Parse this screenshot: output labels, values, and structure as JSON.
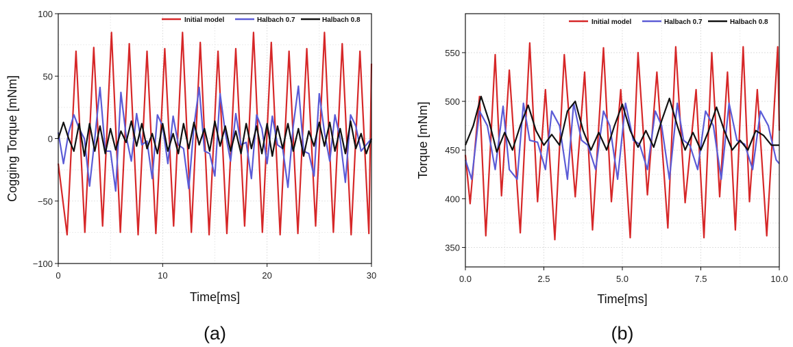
{
  "chart_data": [
    {
      "type": "line",
      "caption": "(a)",
      "xlabel": "Time[ms]",
      "ylabel": "Cogging Torque [mNm]",
      "xlim": [
        0,
        30
      ],
      "ylim": [
        -100,
        100
      ],
      "xticks": [
        0,
        10,
        20,
        30
      ],
      "yticks": [
        -100,
        -50,
        0,
        50,
        100
      ],
      "xtick_labels": [
        "0",
        "10",
        "20",
        "30"
      ],
      "ytick_labels": [
        "−100",
        "−50",
        "0",
        "50",
        "100"
      ],
      "grid": true,
      "legend_position": "top-right",
      "series": [
        {
          "name": "Initial model",
          "color": "#d62728",
          "x": [
            0.0,
            0.85,
            1.7,
            2.55,
            3.4,
            4.25,
            5.1,
            5.95,
            6.8,
            7.65,
            8.5,
            9.35,
            10.2,
            11.05,
            11.9,
            12.75,
            13.6,
            14.45,
            15.3,
            16.15,
            17.0,
            17.85,
            18.7,
            19.55,
            20.4,
            21.25,
            22.1,
            22.95,
            23.8,
            24.65,
            25.5,
            26.35,
            27.2,
            28.05,
            28.9,
            29.75,
            30.0
          ],
          "y": [
            -20,
            -77,
            70,
            -75,
            73,
            -70,
            85,
            -75,
            76,
            -77,
            70,
            -76,
            72,
            -70,
            85,
            -75,
            77,
            -77,
            70,
            -76,
            72,
            -70,
            85,
            -75,
            77,
            -77,
            70,
            -76,
            72,
            -70,
            85,
            -75,
            76,
            -77,
            70,
            -76,
            60
          ]
        },
        {
          "name": "Halbach 0.7",
          "color": "#5b5bd6",
          "x": [
            0.0,
            0.5,
            1.0,
            1.5,
            2.0,
            2.5,
            3.0,
            3.5,
            4.0,
            4.5,
            5.0,
            5.5,
            6.0,
            6.5,
            7.0,
            7.5,
            8.0,
            8.5,
            9.0,
            9.5,
            10.0,
            10.5,
            11.0,
            11.5,
            12.0,
            12.5,
            13.0,
            13.5,
            14.0,
            14.5,
            15.0,
            15.5,
            16.0,
            16.5,
            17.0,
            17.5,
            18.0,
            18.5,
            19.0,
            19.5,
            20.0,
            20.5,
            21.0,
            21.5,
            22.0,
            22.5,
            23.0,
            23.5,
            24.0,
            24.5,
            25.0,
            25.5,
            26.0,
            26.5,
            27.0,
            27.5,
            28.0,
            28.5,
            29.0,
            29.5,
            30.0
          ],
          "y": [
            5,
            -20,
            5,
            19,
            8,
            0,
            -38,
            0,
            41,
            -10,
            -10,
            -42,
            37,
            2,
            -18,
            20,
            -5,
            -2,
            -32,
            19,
            10,
            -20,
            18,
            -5,
            -8,
            -40,
            10,
            41,
            -10,
            -12,
            -30,
            36,
            5,
            -18,
            20,
            -5,
            -3,
            -32,
            19,
            8,
            -20,
            18,
            -5,
            -8,
            -39,
            10,
            42,
            -10,
            -12,
            -30,
            36,
            5,
            -18,
            19,
            0,
            -35,
            19,
            10,
            -10,
            -5,
            0
          ]
        },
        {
          "name": "Halbach 0.8",
          "color": "#111111",
          "x": [
            0.0,
            0.5,
            1.0,
            1.5,
            2.0,
            2.5,
            3.0,
            3.5,
            4.0,
            4.5,
            5.0,
            5.5,
            6.0,
            6.5,
            7.0,
            7.5,
            8.0,
            8.5,
            9.0,
            9.5,
            10.0,
            10.5,
            11.0,
            11.5,
            12.0,
            12.5,
            13.0,
            13.5,
            14.0,
            14.5,
            15.0,
            15.5,
            16.0,
            16.5,
            17.0,
            17.5,
            18.0,
            18.5,
            19.0,
            19.5,
            20.0,
            20.5,
            21.0,
            21.5,
            22.0,
            22.5,
            23.0,
            23.5,
            24.0,
            24.5,
            25.0,
            25.5,
            26.0,
            26.5,
            27.0,
            27.5,
            28.0,
            28.5,
            29.0,
            29.5,
            30.0
          ],
          "y": [
            0,
            13,
            0,
            -10,
            12,
            -14,
            12,
            -10,
            10,
            -12,
            8,
            -9,
            6,
            -3,
            14,
            -6,
            12,
            -8,
            4,
            -12,
            12,
            -10,
            4,
            -12,
            12,
            -8,
            13,
            -5,
            8,
            -10,
            14,
            -6,
            10,
            -10,
            6,
            -12,
            12,
            -8,
            10,
            -12,
            12,
            -14,
            10,
            -8,
            12,
            -10,
            8,
            -14,
            6,
            -6,
            13,
            -6,
            13,
            -10,
            8,
            -12,
            14,
            -8,
            4,
            -12,
            0
          ]
        }
      ]
    },
    {
      "type": "line",
      "caption": "(b)",
      "xlabel": "Time[ms]",
      "ylabel": "Torque [mNm]",
      "xlim": [
        0,
        10
      ],
      "ylim": [
        330,
        590
      ],
      "xticks": [
        0,
        2.5,
        5,
        7.5,
        10
      ],
      "yticks": [
        350,
        400,
        450,
        500,
        550
      ],
      "xtick_labels": [
        "0.0",
        "2.5",
        "5.0",
        "7.5",
        "10.0"
      ],
      "ytick_labels": [
        "350",
        "400",
        "450",
        "500",
        "550"
      ],
      "grid": true,
      "legend_position": "top-right",
      "series": [
        {
          "name": "Initial model",
          "color": "#d62728",
          "x": [
            0.0,
            0.15,
            0.45,
            0.65,
            0.95,
            1.15,
            1.4,
            1.75,
            2.05,
            2.3,
            2.55,
            2.85,
            3.15,
            3.5,
            3.8,
            4.05,
            4.4,
            4.65,
            4.95,
            5.25,
            5.5,
            5.8,
            6.1,
            6.45,
            6.7,
            7.0,
            7.35,
            7.6,
            7.85,
            8.1,
            8.35,
            8.6,
            8.85,
            9.05,
            9.3,
            9.6,
            9.95,
            10.0
          ],
          "y": [
            445,
            395,
            505,
            362,
            548,
            403,
            532,
            365,
            560,
            397,
            512,
            358,
            548,
            402,
            530,
            368,
            555,
            397,
            512,
            360,
            550,
            404,
            530,
            370,
            556,
            396,
            512,
            360,
            550,
            402,
            530,
            368,
            556,
            397,
            512,
            362,
            556,
            470
          ]
        },
        {
          "name": "Halbach 0.7",
          "color": "#5b5bd6",
          "x": [
            0.0,
            0.2,
            0.45,
            0.7,
            0.95,
            1.2,
            1.4,
            1.65,
            1.85,
            2.05,
            2.3,
            2.55,
            2.75,
            3.0,
            3.25,
            3.45,
            3.7,
            3.9,
            4.15,
            4.4,
            4.6,
            4.85,
            5.1,
            5.35,
            5.55,
            5.8,
            6.05,
            6.25,
            6.5,
            6.75,
            6.95,
            7.15,
            7.4,
            7.65,
            7.9,
            8.15,
            8.4,
            8.65,
            8.9,
            9.15,
            9.4,
            9.65,
            9.9,
            10.0
          ],
          "y": [
            440,
            420,
            490,
            475,
            430,
            495,
            430,
            420,
            498,
            460,
            458,
            430,
            490,
            475,
            420,
            498,
            460,
            455,
            430,
            490,
            475,
            420,
            498,
            460,
            456,
            430,
            490,
            475,
            420,
            498,
            460,
            455,
            430,
            490,
            475,
            420,
            498,
            460,
            456,
            430,
            490,
            475,
            440,
            436
          ]
        },
        {
          "name": "Halbach 0.8",
          "color": "#111111",
          "x": [
            0.0,
            0.25,
            0.5,
            0.75,
            1.0,
            1.25,
            1.5,
            1.75,
            2.0,
            2.25,
            2.5,
            2.75,
            3.0,
            3.25,
            3.5,
            3.75,
            4.0,
            4.25,
            4.5,
            4.75,
            5.0,
            5.25,
            5.5,
            5.75,
            6.0,
            6.25,
            6.5,
            6.75,
            7.0,
            7.25,
            7.5,
            7.75,
            8.0,
            8.25,
            8.5,
            8.75,
            9.0,
            9.25,
            9.5,
            9.75,
            10.0
          ],
          "y": [
            455,
            475,
            505,
            480,
            448,
            468,
            450,
            475,
            496,
            470,
            455,
            466,
            455,
            490,
            500,
            470,
            450,
            468,
            450,
            475,
            497,
            470,
            453,
            470,
            453,
            480,
            503,
            475,
            450,
            468,
            450,
            470,
            494,
            470,
            450,
            460,
            450,
            470,
            465,
            455,
            455
          ]
        }
      ]
    }
  ]
}
